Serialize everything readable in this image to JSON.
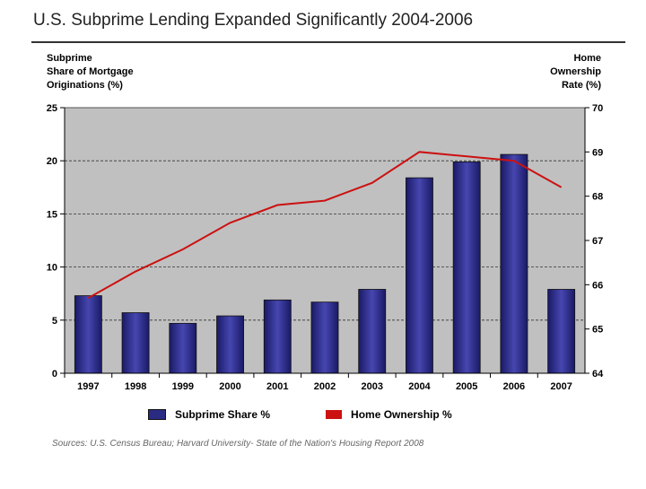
{
  "title": "U.S. Subprime Lending Expanded Significantly 2004-2006",
  "source": "Sources:  U.S. Census Bureau; Harvard University- State of the Nation's Housing Report 2008",
  "colors": {
    "bar": "#2b2b84",
    "bar_center": "#4a4ab8",
    "line": "#cc1111",
    "plot_bg": "#c0c0c0"
  },
  "chart_data": {
    "type": "bar",
    "title": "U.S. Subprime Lending Expanded Significantly 2004-2006",
    "categories": [
      "1997",
      "1998",
      "1999",
      "2000",
      "2001",
      "2002",
      "2003",
      "2004",
      "2005",
      "2006",
      "2007"
    ],
    "y_left": {
      "label_lines": [
        "Subprime",
        "Share of Mortgage",
        "Originations (%)"
      ],
      "range": [
        0,
        25
      ],
      "ticks": [
        "0",
        "5",
        "10",
        "15",
        "20",
        "25"
      ]
    },
    "y_right": {
      "label_lines": [
        "Home",
        "Ownership",
        "Rate (%)"
      ],
      "range": [
        64,
        70
      ],
      "ticks": [
        "64",
        "65",
        "66",
        "67",
        "68",
        "69",
        "70"
      ]
    },
    "series": [
      {
        "name": "Subprime Share %",
        "type": "bar",
        "axis": "left",
        "values": [
          7.3,
          5.7,
          4.7,
          5.4,
          6.9,
          6.7,
          7.9,
          18.4,
          19.9,
          20.6,
          7.9
        ]
      },
      {
        "name": "Home Ownership %",
        "type": "line",
        "axis": "right",
        "values": [
          65.7,
          66.3,
          66.8,
          67.4,
          67.8,
          67.9,
          68.3,
          69.0,
          68.9,
          68.8,
          68.2
        ]
      }
    ],
    "grid": "horizontal dashed",
    "legend": "bottom"
  }
}
